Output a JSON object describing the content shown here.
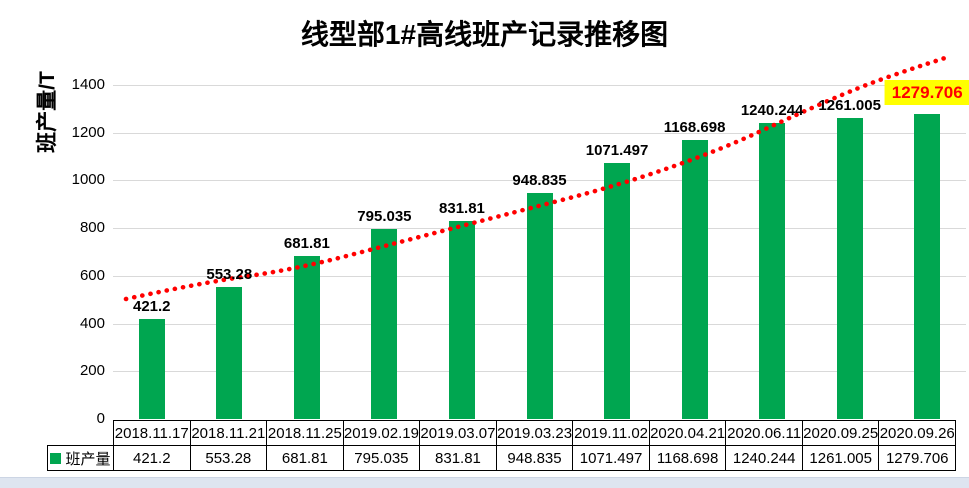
{
  "chart_data": {
    "type": "bar",
    "title": "线型部1#高线班产记录推移图",
    "ylabel": "班产量/T",
    "categories": [
      "2018.11.17",
      "2018.11.21",
      "2018.11.25",
      "2019.02.19",
      "2019.03.07",
      "2019.03.23",
      "2019.11.02",
      "2020.04.21",
      "2020.06.11",
      "2020.09.25",
      "2020.09.26"
    ],
    "series": [
      {
        "name": "班产量",
        "values": [
          421.2,
          553.28,
          681.81,
          795.035,
          831.81,
          948.835,
          1071.497,
          1168.698,
          1240.244,
          1261.005,
          1279.706
        ],
        "value_labels": [
          "421.2",
          "553.28",
          "681.81",
          "795.035",
          "831.81",
          "948.835",
          "1071.497",
          "1168.698",
          "1240.244",
          "1261.005",
          "1279.706"
        ]
      }
    ],
    "ylim": [
      0,
      1400
    ],
    "yticks": [
      0,
      200,
      400,
      600,
      800,
      1000,
      1200,
      1400
    ],
    "grid": "horizontal",
    "legend_position": "data-table-left",
    "data_table_shown": true,
    "trendline": {
      "present": true,
      "style": "dotted",
      "color": "#FF0000"
    },
    "highlight": {
      "index": 10,
      "bg": "#FFFF00",
      "text_color": "#FF0000"
    }
  },
  "colors": {
    "bar": "#00A650",
    "grid": "#D9D9D9",
    "trend": "#FF0000",
    "highlight_bg": "#FFFF00",
    "highlight_text": "#FF0000",
    "table_border": "#000000",
    "bottom_strip": "#DEE5F0"
  }
}
